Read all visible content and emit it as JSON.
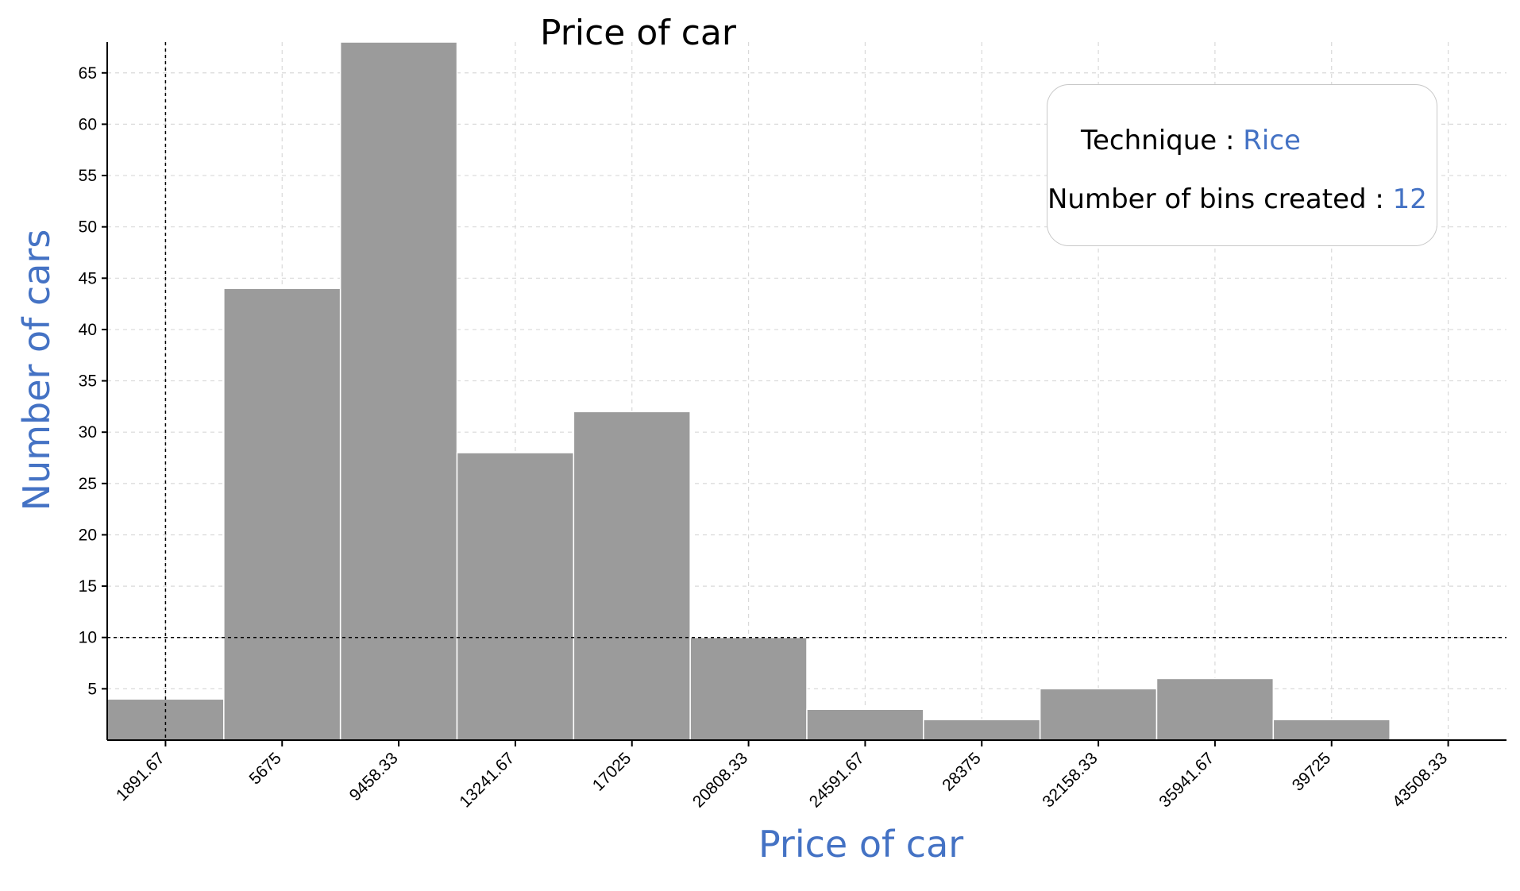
{
  "chart_data": {
    "type": "bar",
    "title": "Price of car",
    "xlabel": "Price of car",
    "ylabel": "Number of cars",
    "x_tick_labels": [
      "1891.67",
      "5675",
      "9458.33",
      "13241.67",
      "17025",
      "20808.33",
      "24591.67",
      "28375",
      "32158.33",
      "35941.67",
      "39725",
      "43508.33"
    ],
    "x_ticks": [
      1891.67,
      5675,
      9458.33,
      13241.67,
      17025,
      20808.33,
      24591.67,
      28375,
      32158.33,
      35941.67,
      39725,
      43508.33
    ],
    "bin_edges": [
      0,
      3783.33,
      7566.67,
      11350,
      15133.33,
      18916.67,
      22700,
      26483.33,
      30266.67,
      34050,
      37833.33,
      41616.67,
      45400
    ],
    "values": [
      4,
      44,
      68,
      28,
      32,
      10,
      3,
      2,
      5,
      6,
      2,
      0
    ],
    "xlim": [
      0,
      45400
    ],
    "ylim": [
      0,
      68
    ],
    "y_ticks": [
      5,
      10,
      15,
      20,
      25,
      30,
      35,
      40,
      45,
      50,
      55,
      60,
      65
    ],
    "grid": true,
    "reference_lines": {
      "x": 1891.67,
      "y": 10
    },
    "colors": {
      "bar": "#9b9b9b",
      "label": "#4472c4",
      "grid": "#d9d9d9"
    }
  },
  "info": {
    "technique_label": "Technique :",
    "technique_value": "Rice",
    "bins_label": "Number of bins created :",
    "bins_value": "12"
  }
}
